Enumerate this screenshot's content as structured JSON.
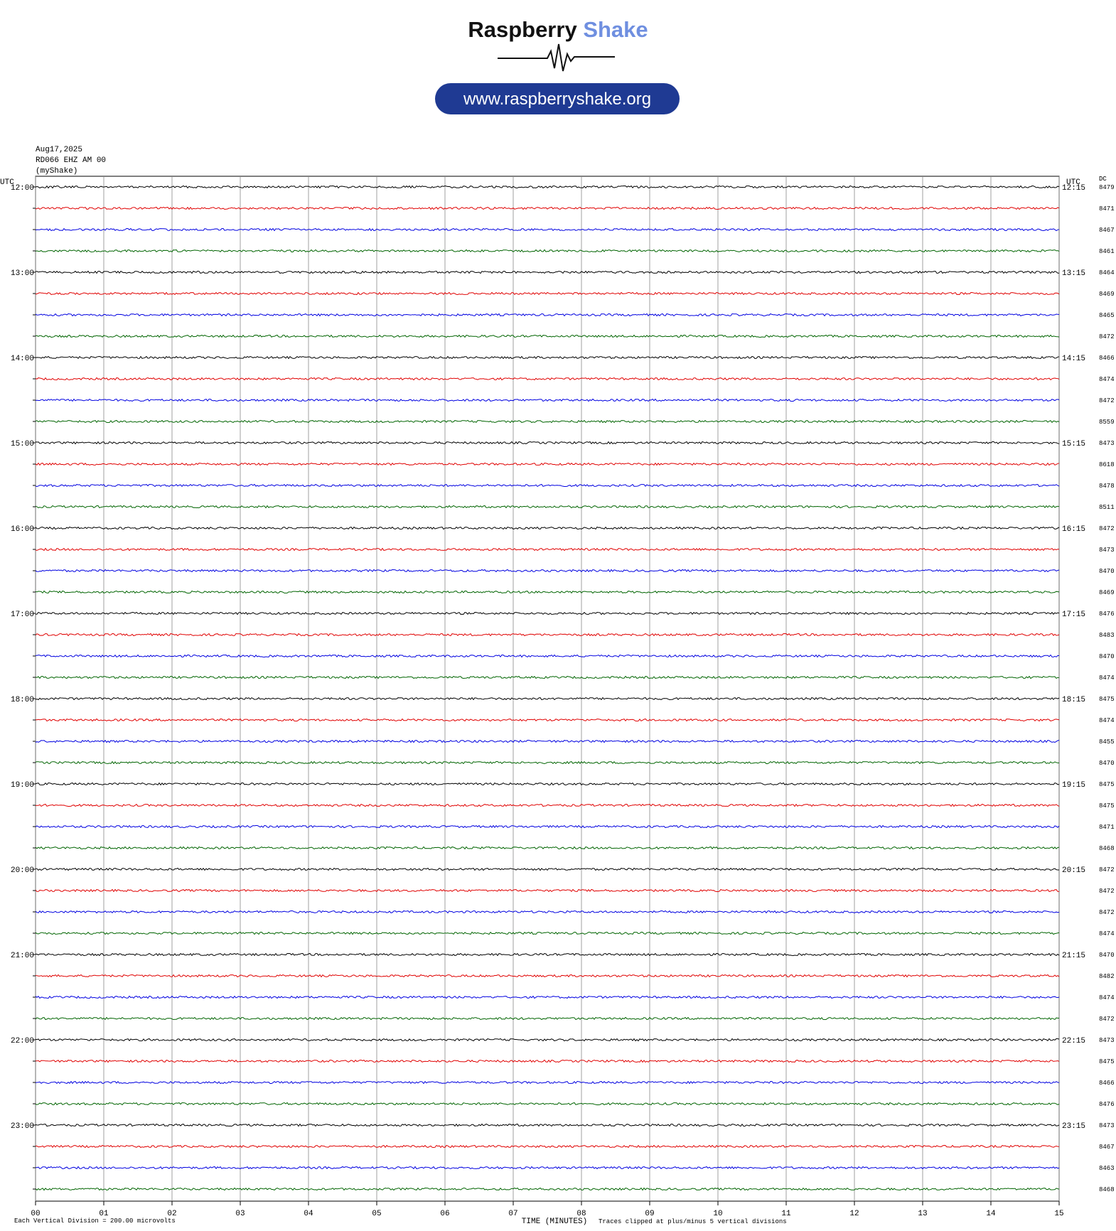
{
  "header": {
    "brand_main": "Raspberry",
    "brand_accent": "Shake",
    "url": "www.raspberryshake.org"
  },
  "chart_data": {
    "type": "helicorder",
    "date": "Aug17,2025",
    "station": "RD066 EHZ AM 00",
    "source": "(myShake)",
    "left_axis_label": "UTC",
    "right_axis_label": "UTC",
    "dc_label": "DC",
    "x_label": "TIME (MINUTES)",
    "scale_note": "Each Vertical Division =  200.00 microvolts",
    "clip_note": "Traces clipped at plus/minus 5 vertical divisions",
    "colors": [
      "#000000",
      "#e00000",
      "#0000e0",
      "#006400"
    ],
    "xlim": [
      0,
      15
    ],
    "xticks": [
      {
        "value": 0,
        "label": "00"
      },
      {
        "value": 1,
        "label": "01"
      },
      {
        "value": 2,
        "label": "02"
      },
      {
        "value": 3,
        "label": "03"
      },
      {
        "value": 4,
        "label": "04"
      },
      {
        "value": 5,
        "label": "05"
      },
      {
        "value": 6,
        "label": "06"
      },
      {
        "value": 7,
        "label": "07"
      },
      {
        "value": 8,
        "label": "08"
      },
      {
        "value": 9,
        "label": "09"
      },
      10,
      11,
      12,
      13,
      14,
      15
    ],
    "start_labels": [
      "12:00",
      null,
      null,
      null,
      "13:00",
      null,
      null,
      null,
      "14:00",
      null,
      null,
      null,
      "15:00",
      null,
      null,
      null,
      "16:00",
      null,
      null,
      null,
      "17:00",
      null,
      null,
      null,
      "18:00",
      null,
      null,
      null,
      "19:00",
      null,
      null,
      null,
      "20:00",
      null,
      null,
      null,
      "21:00",
      null,
      null,
      null,
      "22:00",
      null,
      null,
      null,
      "23:00",
      null,
      null,
      null
    ],
    "end_labels": [
      "12:15",
      null,
      null,
      null,
      "13:15",
      null,
      null,
      null,
      "14:15",
      null,
      null,
      null,
      "15:15",
      null,
      null,
      null,
      "16:15",
      null,
      null,
      null,
      "17:15",
      null,
      null,
      null,
      "18:15",
      null,
      null,
      null,
      "19:15",
      null,
      null,
      null,
      "20:15",
      null,
      null,
      null,
      "21:15",
      null,
      null,
      null,
      "22:15",
      null,
      null,
      null,
      "23:15",
      null,
      null,
      null
    ],
    "dc_values": [
      8479,
      8471,
      8467,
      8461,
      8464,
      8469,
      8465,
      8472,
      8466,
      8474,
      8472,
      8559,
      8473,
      8618,
      8478,
      8511,
      8472,
      8473,
      8470,
      8469,
      8476,
      8483,
      8470,
      8474,
      8475,
      8474,
      8455,
      8470,
      8475,
      8475,
      8471,
      8468,
      8472,
      8472,
      8472,
      8474,
      8470,
      8482,
      8474,
      8472,
      8473,
      8475,
      8466,
      8476,
      8473,
      8467,
      8463,
      8468
    ]
  }
}
